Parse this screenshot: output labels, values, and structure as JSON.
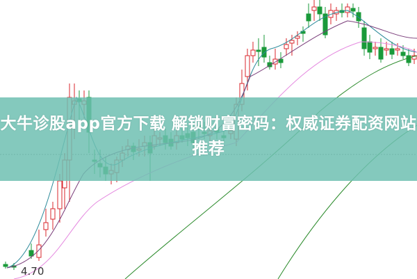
{
  "article": {
    "title": "大牛诊股app官方下载 解锁财富密码：权威证券配资网站推荐"
  },
  "chart": {
    "price_label": "4.70",
    "colors": {
      "up": "#d9262b",
      "down": "#1a9a3a",
      "ma5": "#2c8a9a",
      "ma10": "#7a3d7a",
      "ma20": "#e58ae0",
      "ma60": "#2a8a2a",
      "banner": "#6fc0b2"
    }
  }
}
